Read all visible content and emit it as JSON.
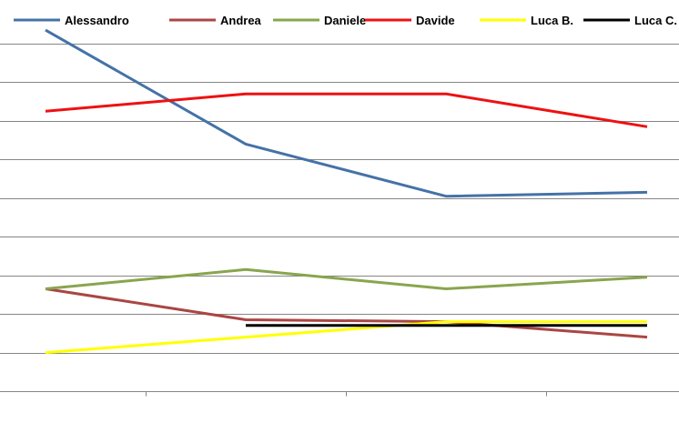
{
  "chart_data": {
    "type": "line",
    "title": "",
    "xlabel": "",
    "ylabel": "",
    "categories": [
      "",
      "",
      "",
      ""
    ],
    "ylim": [
      0,
      9
    ],
    "y_ticks": [
      0,
      1,
      2,
      3,
      4,
      5,
      6,
      7,
      8,
      9
    ],
    "grid": true,
    "legend_position": "top",
    "series": [
      {
        "name": "Alessandro",
        "color": "#4572A7",
        "values": [
          9.35,
          6.4,
          5.05,
          5.15
        ]
      },
      {
        "name": "Andrea",
        "color": "#AA4643",
        "values": [
          2.65,
          1.85,
          1.8,
          1.4
        ]
      },
      {
        "name": "Daniele",
        "color": "#89A54E",
        "values": [
          2.65,
          3.15,
          2.65,
          2.95
        ]
      },
      {
        "name": "Davide",
        "color": "#EE1111",
        "values": [
          7.25,
          7.7,
          7.7,
          6.85
        ]
      },
      {
        "name": "Luca B.",
        "color": "#FFFF00",
        "values": [
          1.0,
          1.4,
          1.8,
          1.8
        ]
      },
      {
        "name": "Luca C.",
        "color": "#000000",
        "values": [
          null,
          1.7,
          1.7,
          1.7
        ]
      }
    ]
  }
}
